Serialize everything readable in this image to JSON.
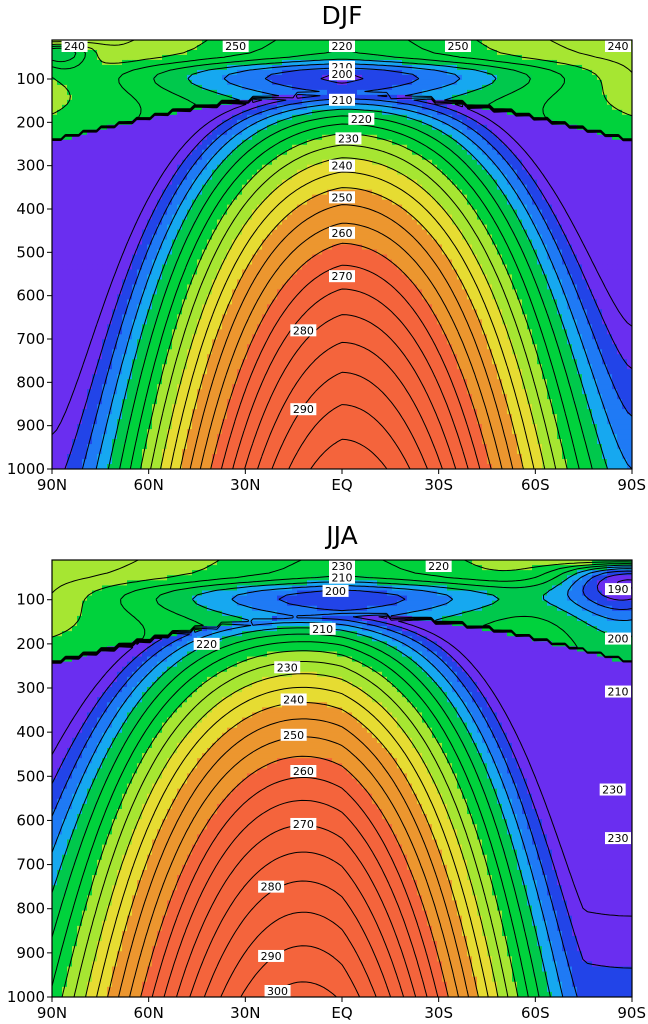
{
  "chart_data": [
    {
      "type": "heatmap",
      "plot_kind": "filled latitude-pressure contour",
      "title": "DJF",
      "xlabel": "",
      "ylabel": "",
      "x_ticks": [
        "90N",
        "60N",
        "30N",
        "EQ",
        "30S",
        "60S",
        "90S"
      ],
      "y_ticks": [
        "100",
        "200",
        "300",
        "400",
        "500",
        "600",
        "700",
        "800",
        "900",
        "1000"
      ],
      "y_reversed": true,
      "xlim": [
        90,
        -90
      ],
      "ylim": [
        1000,
        10
      ],
      "contour_interval": 5,
      "grid": false,
      "labels": [
        {
          "text": "210",
          "lat": 0,
          "p": 72
        },
        {
          "text": "200",
          "lat": 0,
          "p": 89
        },
        {
          "text": "220",
          "lat": 0,
          "p": 12
        },
        {
          "text": "210",
          "lat": 0,
          "p": 148
        },
        {
          "text": "220",
          "lat": -6,
          "p": 192
        },
        {
          "text": "230",
          "lat": -2,
          "p": 237
        },
        {
          "text": "240",
          "lat": 0,
          "p": 300
        },
        {
          "text": "250",
          "lat": 0,
          "p": 373
        },
        {
          "text": "260",
          "lat": 0,
          "p": 455
        },
        {
          "text": "270",
          "lat": 0,
          "p": 555
        },
        {
          "text": "280",
          "lat": 12,
          "p": 680
        },
        {
          "text": "290",
          "lat": 12,
          "p": 862
        },
        {
          "text": "250",
          "lat": 33,
          "p": 12
        },
        {
          "text": "250",
          "lat": -36,
          "p": 12
        },
        {
          "text": "240",
          "lat": -89,
          "p": 12
        },
        {
          "text": "240",
          "lat": 83,
          "p": 12
        }
      ]
    },
    {
      "type": "heatmap",
      "plot_kind": "filled latitude-pressure contour",
      "title": "JJA",
      "xlabel": "",
      "ylabel": "",
      "x_ticks": [
        "90N",
        "60N",
        "30N",
        "EQ",
        "30S",
        "60S",
        "90S"
      ],
      "y_ticks": [
        "100",
        "200",
        "300",
        "400",
        "500",
        "600",
        "700",
        "800",
        "900",
        "1000"
      ],
      "y_reversed": true,
      "xlim": [
        90,
        -90
      ],
      "ylim": [
        1000,
        10
      ],
      "contour_interval": 5,
      "grid": false,
      "labels": [
        {
          "text": "230",
          "lat": 0,
          "p": 12
        },
        {
          "text": "210",
          "lat": 0,
          "p": 50
        },
        {
          "text": "200",
          "lat": 2,
          "p": 80
        },
        {
          "text": "220",
          "lat": -30,
          "p": 20
        },
        {
          "text": "210",
          "lat": 6,
          "p": 166
        },
        {
          "text": "220",
          "lat": 42,
          "p": 200
        },
        {
          "text": "230",
          "lat": 17,
          "p": 253
        },
        {
          "text": "240",
          "lat": 15,
          "p": 326
        },
        {
          "text": "250",
          "lat": 15,
          "p": 406
        },
        {
          "text": "260",
          "lat": 12,
          "p": 488
        },
        {
          "text": "270",
          "lat": 12,
          "p": 608
        },
        {
          "text": "280",
          "lat": 22,
          "p": 750
        },
        {
          "text": "290",
          "lat": 22,
          "p": 907
        },
        {
          "text": "300",
          "lat": 20,
          "p": 990
        },
        {
          "text": "190",
          "lat": -88,
          "p": 76
        },
        {
          "text": "200",
          "lat": -88,
          "p": 188
        },
        {
          "text": "210",
          "lat": -88,
          "p": 308
        },
        {
          "text": "230",
          "lat": -84,
          "p": 530
        },
        {
          "text": "230",
          "lat": -88,
          "p": 640
        }
      ]
    }
  ]
}
